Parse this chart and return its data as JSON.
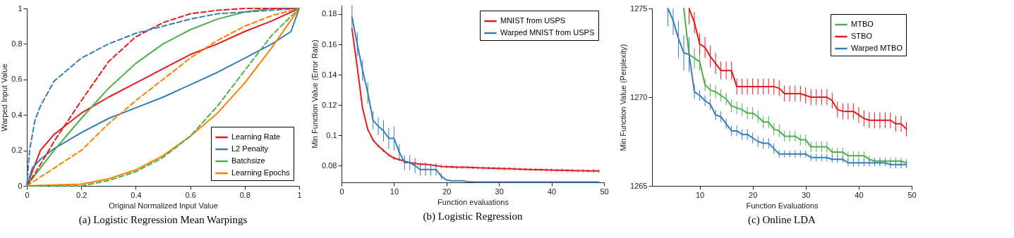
{
  "chart_data": [
    {
      "type": "line",
      "title": "(a) Logistic Regression Mean Warpings",
      "xlabel": "Original Normalized Input Value",
      "ylabel": "Warped Input Value",
      "xlim": [
        0,
        1
      ],
      "xticks": [
        0,
        0.2,
        0.4,
        0.6,
        0.8,
        1
      ],
      "ylim": [
        0,
        1
      ],
      "yticks": [
        0,
        0.2,
        0.4,
        0.6,
        0.8,
        1
      ],
      "legend": "bottom right",
      "series": [
        {
          "name": "Learning Rate",
          "color": "#e41a1c",
          "x": [
            0,
            0.05,
            0.1,
            0.2,
            0.3,
            0.4,
            0.5,
            0.6,
            0.7,
            0.8,
            0.9,
            1
          ],
          "values": [
            0,
            0.2,
            0.29,
            0.41,
            0.5,
            0.58,
            0.66,
            0.74,
            0.8,
            0.87,
            0.93,
            1
          ]
        },
        {
          "name": "L2 Penalty",
          "color": "#377eb8",
          "x": [
            0,
            0.02,
            0.05,
            0.1,
            0.2,
            0.3,
            0.4,
            0.5,
            0.6,
            0.7,
            0.8,
            0.9,
            0.97,
            1
          ],
          "values": [
            0,
            0.1,
            0.15,
            0.21,
            0.3,
            0.38,
            0.44,
            0.5,
            0.57,
            0.64,
            0.72,
            0.8,
            0.87,
            1
          ]
        },
        {
          "name": "Batchsize",
          "color": "#4daf4a",
          "x": [
            0,
            0.1,
            0.2,
            0.3,
            0.4,
            0.5,
            0.6,
            0.7,
            0.8,
            0.9,
            1
          ],
          "values": [
            0,
            0.2,
            0.38,
            0.55,
            0.69,
            0.8,
            0.88,
            0.94,
            0.98,
            1,
            1
          ]
        },
        {
          "name": "Learning Epochs",
          "color": "#ff7f00",
          "x": [
            0,
            0.2,
            0.3,
            0.4,
            0.5,
            0.6,
            0.7,
            0.8,
            0.9,
            1
          ],
          "values": [
            0,
            0.01,
            0.04,
            0.09,
            0.17,
            0.28,
            0.41,
            0.58,
            0.78,
            1
          ]
        },
        {
          "color": "#e41a1c",
          "line_style": "dashed",
          "x": [
            0,
            0.05,
            0.1,
            0.2,
            0.3,
            0.4,
            0.5,
            0.6,
            0.7,
            0.8,
            1
          ],
          "values": [
            0,
            0.12,
            0.25,
            0.48,
            0.7,
            0.84,
            0.92,
            0.97,
            0.99,
            1,
            1
          ]
        },
        {
          "color": "#377eb8",
          "line_style": "dashed",
          "x": [
            0,
            0.01,
            0.03,
            0.05,
            0.1,
            0.2,
            0.3,
            0.4,
            0.5,
            0.6,
            0.7,
            0.8,
            0.9,
            1
          ],
          "values": [
            0,
            0.2,
            0.37,
            0.45,
            0.59,
            0.72,
            0.8,
            0.86,
            0.9,
            0.94,
            0.97,
            0.98,
            0.99,
            1
          ]
        },
        {
          "color": "#ff7f00",
          "line_style": "dashed",
          "x": [
            0,
            0.1,
            0.2,
            0.3,
            0.4,
            0.5,
            0.6,
            0.7,
            0.8,
            0.9,
            1
          ],
          "values": [
            0,
            0.1,
            0.2,
            0.35,
            0.48,
            0.6,
            0.72,
            0.82,
            0.9,
            0.96,
            1
          ]
        },
        {
          "color": "#4daf4a",
          "line_style": "dashed",
          "x": [
            0,
            0.2,
            0.3,
            0.4,
            0.5,
            0.6,
            0.7,
            0.8,
            0.9,
            1
          ],
          "values": [
            0,
            0,
            0.03,
            0.08,
            0.16,
            0.28,
            0.45,
            0.65,
            0.85,
            1
          ]
        }
      ]
    },
    {
      "type": "line",
      "title": "(b) Logistic Regression",
      "xlabel": "Function evaluations",
      "ylabel": "Min Function Value (Error Rate)",
      "xlim": [
        0,
        50
      ],
      "xticks": [
        0,
        10,
        20,
        30,
        40,
        50
      ],
      "ylim": [
        0.069,
        0.186
      ],
      "yticks": [
        0.08,
        0.1,
        0.12,
        0.14,
        0.16,
        0.18
      ],
      "legend": "top right",
      "x": [
        2,
        3,
        4,
        5,
        6,
        7,
        8,
        9,
        10,
        11,
        12,
        13,
        14,
        15,
        16,
        17,
        18,
        19,
        20,
        21,
        22,
        23,
        24,
        25,
        26,
        27,
        28,
        29,
        30,
        31,
        32,
        33,
        34,
        35,
        36,
        37,
        38,
        39,
        40,
        41,
        42,
        43,
        44,
        45,
        46,
        47,
        48,
        49
      ],
      "series": [
        {
          "name": "MNIST from USPS",
          "color": "#e41a1c",
          "values": [
            0.17,
            0.145,
            0.118,
            0.104,
            0.097,
            0.093,
            0.09,
            0.087,
            0.085,
            0.084,
            0.083,
            0.082,
            0.0815,
            0.081,
            0.081,
            0.0805,
            0.08,
            0.0795,
            0.0793,
            0.0792,
            0.079,
            0.079,
            0.079,
            0.0788,
            0.0786,
            0.0785,
            0.0784,
            0.0783,
            0.0782,
            0.078,
            0.078,
            0.0778,
            0.0777,
            0.0776,
            0.0775,
            0.0774,
            0.0773,
            0.0772,
            0.0771,
            0.077,
            0.077,
            0.0769,
            0.0768,
            0.0767,
            0.0767,
            0.0766,
            0.0766,
            0.0765
          ],
          "errors": [
            0.001,
            0.001,
            0.001,
            0.001,
            0.001,
            0.001,
            0.001,
            0.001,
            0.001,
            0.001,
            0.001,
            0.001,
            0.001,
            0.001,
            0.001,
            0.001,
            0.001,
            0.001,
            0.001,
            0.001,
            0.001,
            0.001,
            0.001,
            0.001,
            0.001,
            0.001,
            0.001,
            0.001,
            0.001,
            0.001,
            0.001,
            0.001,
            0.001,
            0.001,
            0.001,
            0.001,
            0.001,
            0.001,
            0.001,
            0.001,
            0.001,
            0.001,
            0.001,
            0.001,
            0.001,
            0.001,
            0.001,
            0.001
          ]
        },
        {
          "name": "Warped MNIST from USPS",
          "color": "#377eb8",
          "values": [
            0.178,
            0.16,
            0.143,
            0.128,
            0.11,
            0.106,
            0.103,
            0.098,
            0.098,
            0.089,
            0.082,
            0.082,
            0.08,
            0.0775,
            0.0775,
            0.0775,
            0.0775,
            0.073,
            0.0705,
            0.07,
            0.07,
            0.07,
            0.0695,
            0.0693,
            0.0692,
            0.0692,
            0.0692,
            0.0692,
            0.0692,
            0.0692,
            0.0692,
            0.0692,
            0.0692,
            0.0692,
            0.0692,
            0.0692,
            0.0692,
            0.0692,
            0.0692,
            0.0692,
            0.0692,
            0.0692,
            0.0692,
            0.0692,
            0.0692,
            0.0692,
            0.0692,
            0.0692
          ],
          "errors": [
            0.008,
            0.008,
            0.007,
            0.007,
            0.006,
            0.006,
            0.007,
            0.007,
            0.008,
            0.005,
            0.005,
            0.005,
            0.005,
            0.004,
            0.004,
            0.004,
            0.004,
            0.002,
            null,
            null,
            null,
            null,
            null,
            null,
            null,
            null,
            null,
            null,
            null,
            null,
            null,
            null,
            null,
            null,
            null,
            null,
            null,
            null,
            null,
            null,
            null,
            null,
            null,
            null,
            null,
            null,
            null,
            null
          ]
        }
      ]
    },
    {
      "type": "line",
      "title": "(c) Online LDA",
      "xlabel": "Function Evaluations",
      "ylabel": "Min Function Value (Perplexity)",
      "xlim": [
        1,
        50
      ],
      "xticks": [
        10,
        20,
        30,
        40,
        50
      ],
      "ylim": [
        1265,
        1275
      ],
      "yticks": [
        1265,
        1270,
        1275
      ],
      "legend": "top right",
      "series": [
        {
          "name": "MTBO",
          "color": "#4daf4a",
          "x": [
            7,
            8,
            9,
            10,
            11,
            12,
            13,
            14,
            15,
            16,
            17,
            18,
            19,
            20,
            21,
            22,
            23,
            24,
            25,
            26,
            27,
            28,
            29,
            30,
            31,
            32,
            33,
            34,
            35,
            36,
            37,
            38,
            39,
            40,
            41,
            42,
            43,
            44,
            45,
            46,
            47,
            48,
            49
          ],
          "values": [
            1275,
            1272.4,
            1272.2,
            1272,
            1270.7,
            1270.4,
            1270.3,
            1270.1,
            1269.9,
            1269.5,
            1269.4,
            1269.3,
            1269.1,
            1269.1,
            1268.9,
            1268.6,
            1268.6,
            1268.2,
            1268.1,
            1267.8,
            1267.8,
            1267.8,
            1267.6,
            1267.6,
            1267.2,
            1267.2,
            1267.2,
            1267.2,
            1266.9,
            1266.9,
            1266.9,
            1266.7,
            1266.7,
            1266.7,
            1266.7,
            1266.5,
            1266.4,
            1266.4,
            1266.4,
            1266.4,
            1266.4,
            1266.4,
            1266.3
          ],
          "errors": [
            null,
            1,
            0.6,
            0.5,
            0.35,
            0.35,
            0.35,
            0.35,
            0.35,
            0.35,
            0.35,
            0.35,
            0.35,
            0.35,
            0.35,
            0.35,
            0.35,
            0.35,
            0.35,
            0.3,
            0.3,
            0.3,
            0.3,
            0.3,
            0.3,
            0.3,
            0.3,
            0.3,
            0.25,
            0.25,
            0.25,
            0.25,
            0.25,
            0.25,
            0.25,
            0.2,
            0.2,
            0.2,
            0.2,
            0.2,
            0.2,
            0.2,
            0.2
          ]
        },
        {
          "name": "STBO",
          "color": "#e41a1c",
          "x": [
            8,
            9,
            10,
            11,
            12,
            13,
            14,
            15,
            16,
            17,
            18,
            19,
            20,
            21,
            22,
            23,
            24,
            25,
            26,
            27,
            28,
            29,
            30,
            31,
            32,
            33,
            34,
            35,
            36,
            37,
            38,
            39,
            40,
            41,
            42,
            43,
            44,
            45,
            46,
            47,
            48,
            49
          ],
          "values": [
            1275,
            1274.2,
            1273,
            1272.8,
            1272.3,
            1271.9,
            1271.5,
            1271.5,
            1271.5,
            1270.6,
            1270.6,
            1270.6,
            1270.6,
            1270.6,
            1270.6,
            1270.6,
            1270.6,
            1270.5,
            1270.2,
            1270.2,
            1270.2,
            1270.2,
            1270.1,
            1270,
            1270,
            1270,
            1270,
            1269.8,
            1269.3,
            1269.2,
            1269.2,
            1269.2,
            1269,
            1268.8,
            1268.7,
            1268.7,
            1268.7,
            1268.7,
            1268.7,
            1268.5,
            1268.5,
            1268.2
          ],
          "errors": [
            [
              1274.1,
              1275
            ],
            0.6,
            0.6,
            0.6,
            0.6,
            0.6,
            0.5,
            0.5,
            0.5,
            0.45,
            0.45,
            0.45,
            0.45,
            0.45,
            0.45,
            0.45,
            0.45,
            0.45,
            0.45,
            0.45,
            0.45,
            0.45,
            0.45,
            0.45,
            0.45,
            0.45,
            0.45,
            0.45,
            0.45,
            0.45,
            0.45,
            0.45,
            0.45,
            0.45,
            0.45,
            0.45,
            0.45,
            0.45,
            0.45,
            0.45,
            0.45,
            0.4
          ]
        },
        {
          "name": "Warped MTBO",
          "color": "#377eb8",
          "x": [
            4,
            5,
            6,
            7,
            8,
            9,
            10,
            11,
            12,
            13,
            14,
            15,
            16,
            17,
            18,
            19,
            20,
            21,
            22,
            23,
            24,
            25,
            26,
            27,
            28,
            29,
            30,
            31,
            32,
            33,
            34,
            35,
            36,
            37,
            38,
            39,
            40,
            41,
            42,
            43,
            44,
            45,
            46,
            47,
            48,
            49
          ],
          "values": [
            1275,
            1274.3,
            1273.3,
            1272.5,
            1272.4,
            1270.3,
            1270.1,
            1269.8,
            1269.6,
            1269,
            1268.9,
            1268.5,
            1268.1,
            1268.1,
            1267.9,
            1267.9,
            1267.7,
            1267.5,
            1267.4,
            1267.4,
            1267.1,
            1266.8,
            1266.8,
            1266.8,
            1266.8,
            1266.8,
            1266.8,
            1266.6,
            1266.6,
            1266.6,
            1266.6,
            1266.5,
            1266.5,
            1266.5,
            1266.3,
            1266.3,
            1266.3,
            1266.3,
            1266.3,
            1266.3,
            1266.3,
            1266.3,
            1266.2,
            1266.2,
            1266.2,
            1266.2
          ],
          "errors": [
            [
              1274,
              1275
            ],
            [
              1273.5,
              1275
            ],
            [
              1272.2,
              1274.3
            ],
            [
              1271.5,
              1273.5
            ],
            0.9,
            0.4,
            0.3,
            0.3,
            0.3,
            0.3,
            0.3,
            0.3,
            0.3,
            0.3,
            0.3,
            0.3,
            0.3,
            0.3,
            0.3,
            0.3,
            0.3,
            0.2,
            0.2,
            0.2,
            0.2,
            0.2,
            0.2,
            0.2,
            0.2,
            0.2,
            0.2,
            0.2,
            0.2,
            0.2,
            0.2,
            0.2,
            0.2,
            0.2,
            0.2,
            0.2,
            0.2,
            0.2,
            0.2,
            0.2,
            0.2,
            0.2
          ]
        }
      ]
    }
  ]
}
